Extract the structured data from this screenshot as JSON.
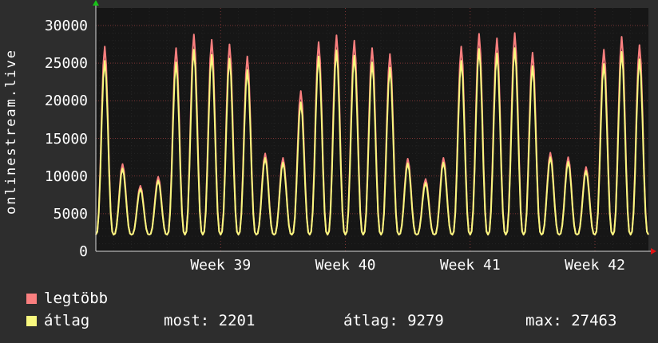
{
  "panel": {
    "background": "#2d2d2d",
    "plot_background": "#161616",
    "axis_color": "#d8d8d8"
  },
  "chart_data": {
    "type": "line",
    "title": "",
    "ylabel": "onlinestream.live",
    "xlabel": "",
    "x_tick_labels": [
      "Week 39",
      "Week 40",
      "Week 41",
      "Week 42"
    ],
    "x_tick_day_positions": [
      7,
      14,
      21,
      28
    ],
    "days": 31,
    "y_ticks": [
      0,
      5000,
      10000,
      15000,
      20000,
      25000,
      30000
    ],
    "ylim": [
      0,
      32300
    ],
    "grid": true,
    "legend_position": "bottom-left",
    "valley_value": 2200,
    "series": [
      {
        "name": "legtöbb",
        "color": "#fa7f7f",
        "day_peaks": [
          27200,
          11600,
          8700,
          9900,
          27000,
          28800,
          28100,
          27500,
          25900,
          13000,
          12400,
          21300,
          27800,
          28700,
          28000,
          27000,
          26200,
          12300,
          9600,
          12400,
          27200,
          28900,
          28300,
          29000,
          26400,
          13100,
          12500,
          11200,
          26800,
          28500,
          27400
        ]
      },
      {
        "name": "átlag",
        "color": "#f8f87e",
        "day_peaks": [
          25300,
          11000,
          8300,
          9400,
          25100,
          26800,
          26100,
          25600,
          24100,
          12400,
          11800,
          19800,
          25900,
          26700,
          26000,
          25100,
          24400,
          11700,
          9100,
          11800,
          25300,
          26900,
          26300,
          27000,
          24600,
          12500,
          11900,
          10700,
          24900,
          26500,
          25500
        ]
      }
    ],
    "stats": {
      "most": "most: 2201",
      "atlag": "átlag: 9279",
      "max": "max: 27463"
    },
    "axis_arrow_up_color": "#17c417",
    "axis_arrow_right_color": "#e01414",
    "major_grid_color": "rgba(250,90,90,0.45)",
    "minor_grid_color": "rgba(255,255,255,0.06)"
  }
}
